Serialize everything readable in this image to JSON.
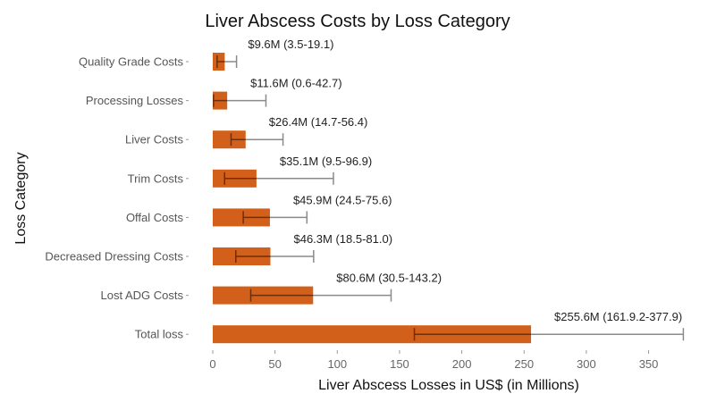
{
  "chart_data": {
    "type": "bar",
    "orientation": "horizontal",
    "title": "Liver Abscess Costs by Loss Category",
    "xlabel": "Liver Abscess Losses in US$ (in Millions)",
    "ylabel": "Loss Category",
    "xlim": [
      0,
      380
    ],
    "xticks": [
      0,
      50,
      100,
      150,
      200,
      250,
      300,
      350
    ],
    "grid": false,
    "bar_color": "#d2601a",
    "error_bar_color": "#8a8a8a",
    "categories": [
      "Quality Grade Costs",
      "Processing Losses",
      "Liver Costs",
      "Trim Costs",
      "Offal Costs",
      "Decreased Dressing Costs",
      "Lost ADG Costs",
      "Total loss"
    ],
    "values": [
      9.6,
      11.6,
      26.4,
      35.1,
      45.9,
      46.3,
      80.6,
      255.6
    ],
    "lower": [
      3.5,
      0.6,
      14.7,
      9.5,
      24.5,
      18.5,
      30.5,
      161.9
    ],
    "upper": [
      19.1,
      42.7,
      56.4,
      96.9,
      75.6,
      81.0,
      143.2,
      377.9
    ],
    "data_labels": [
      "$9.6M (3.5-19.1)",
      "$11.6M (0.6-42.7)",
      "$26.4M (14.7-56.4)",
      "$35.1M (9.5-96.9)",
      "$45.9M (24.5-75.6)",
      "$46.3M (18.5-81.0)",
      "$80.6M (30.5-143.2)",
      "$255.6M (161.9.2-377.9)"
    ]
  }
}
